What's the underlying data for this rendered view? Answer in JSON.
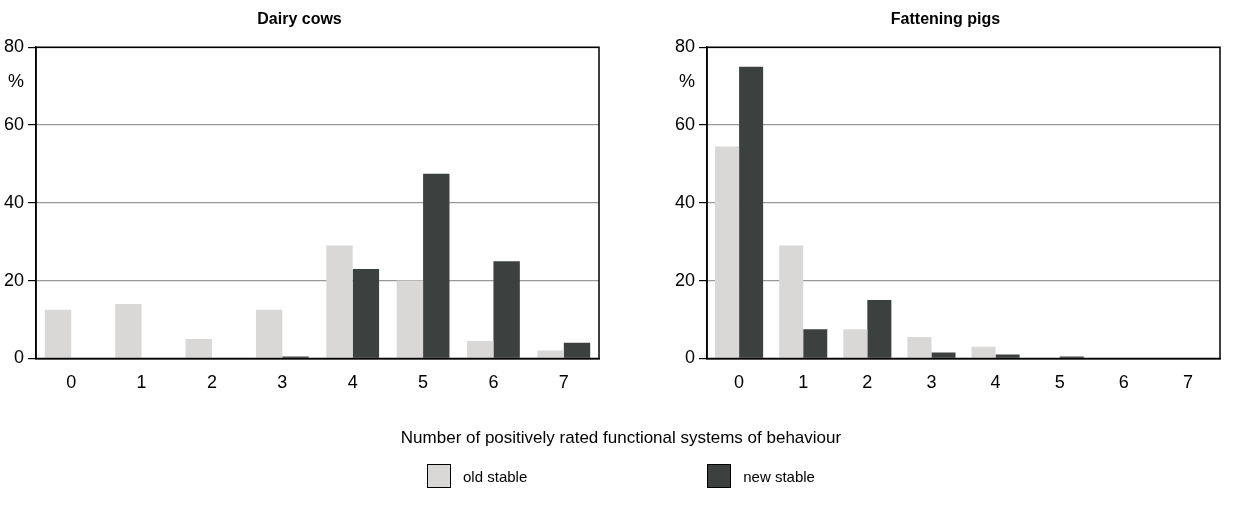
{
  "chart_data": [
    {
      "type": "bar",
      "title": "Dairy cows",
      "ylabel": "%",
      "xlabel": "Number of positively rated functional systems of behaviour",
      "categories": [
        "0",
        "1",
        "2",
        "3",
        "4",
        "5",
        "6",
        "7"
      ],
      "series": [
        {
          "name": "old stable",
          "color": "#d9d8d6",
          "values": [
            12.5,
            14,
            5,
            12.5,
            29,
            20,
            4.5,
            2
          ]
        },
        {
          "name": "new stable",
          "color": "#3c413f",
          "values": [
            0,
            0,
            0,
            0.5,
            23,
            47.5,
            25,
            4
          ]
        }
      ],
      "ylim": [
        0,
        80
      ],
      "yticks": [
        0,
        20,
        40,
        60,
        80
      ],
      "grid": "y",
      "legend": "bottom"
    },
    {
      "type": "bar",
      "title": "Fattening pigs",
      "ylabel": "%",
      "categories": [
        "0",
        "1",
        "2",
        "3",
        "4",
        "5",
        "6",
        "7"
      ],
      "series": [
        {
          "color": "#d9d8d6",
          "values": [
            54.5,
            29,
            7.5,
            5.5,
            3,
            0,
            0,
            0
          ]
        },
        {
          "color": "#3c413f",
          "values": [
            75,
            7.5,
            15,
            1.5,
            1,
            0.5,
            0,
            0
          ]
        }
      ],
      "ylim": [
        0,
        80
      ],
      "yticks": [
        0,
        20,
        40,
        60,
        80
      ],
      "grid": "y"
    }
  ]
}
